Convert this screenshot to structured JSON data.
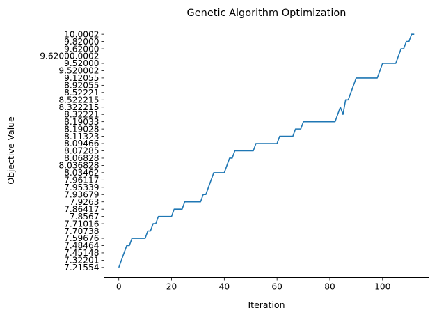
{
  "chart_data": {
    "type": "line",
    "title": "Genetic Algorithm Optimization",
    "xlabel": "Iteration",
    "ylabel": "Objective Value",
    "xlim": [
      -5.6,
      117.6
    ],
    "xticks": [
      0,
      20,
      40,
      60,
      80,
      100
    ],
    "ylim": [
      -1.4,
      33.4
    ],
    "y_scale": "categorical (labels in order of first occurrence)",
    "y_categories": [
      "7.21554",
      "7.32201",
      "7.45148",
      "7.48464",
      "7.59676",
      "7.70738",
      "7.71016",
      "7.8567",
      "7.86417",
      "7.9263",
      "7.93679",
      "7.95339",
      "7.96117",
      "8.03462",
      "8.036828",
      "8.06828",
      "8.07285",
      "8.09466",
      "8.11323",
      "8.19028",
      "8.19033",
      "8.32221",
      "8.322215",
      "8.522215",
      "8.52221",
      "8.92055",
      "9.12055",
      "9.520002",
      "9.52000",
      "9.62000.0002",
      "9.62000",
      "9.82000",
      "10.0002"
    ],
    "grid": false,
    "legend": "none",
    "line_color": "#1f77b4",
    "series": [
      {
        "name": "",
        "points": [
          [
            0,
            0
          ],
          [
            1,
            1
          ],
          [
            2,
            2
          ],
          [
            3,
            3
          ],
          [
            4,
            3
          ],
          [
            5,
            4
          ],
          [
            6,
            4
          ],
          [
            7,
            4
          ],
          [
            8,
            4
          ],
          [
            9,
            4
          ],
          [
            10,
            4
          ],
          [
            11,
            5
          ],
          [
            12,
            5
          ],
          [
            13,
            6
          ],
          [
            14,
            6
          ],
          [
            15,
            7
          ],
          [
            16,
            7
          ],
          [
            17,
            7
          ],
          [
            18,
            7
          ],
          [
            19,
            7
          ],
          [
            20,
            7
          ],
          [
            21,
            8
          ],
          [
            22,
            8
          ],
          [
            23,
            8
          ],
          [
            24,
            8
          ],
          [
            25,
            9
          ],
          [
            26,
            9
          ],
          [
            27,
            9
          ],
          [
            28,
            9
          ],
          [
            29,
            9
          ],
          [
            30,
            9
          ],
          [
            31,
            9
          ],
          [
            32,
            10
          ],
          [
            33,
            10
          ],
          [
            34,
            11
          ],
          [
            35,
            12
          ],
          [
            36,
            13
          ],
          [
            37,
            13
          ],
          [
            38,
            13
          ],
          [
            39,
            13
          ],
          [
            40,
            13
          ],
          [
            41,
            14
          ],
          [
            42,
            15
          ],
          [
            43,
            15
          ],
          [
            44,
            16
          ],
          [
            45,
            16
          ],
          [
            46,
            16
          ],
          [
            47,
            16
          ],
          [
            48,
            16
          ],
          [
            49,
            16
          ],
          [
            50,
            16
          ],
          [
            51,
            16
          ],
          [
            52,
            17
          ],
          [
            53,
            17
          ],
          [
            54,
            17
          ],
          [
            55,
            17
          ],
          [
            56,
            17
          ],
          [
            57,
            17
          ],
          [
            58,
            17
          ],
          [
            59,
            17
          ],
          [
            60,
            17
          ],
          [
            61,
            18
          ],
          [
            62,
            18
          ],
          [
            63,
            18
          ],
          [
            64,
            18
          ],
          [
            65,
            18
          ],
          [
            66,
            18
          ],
          [
            67,
            19
          ],
          [
            68,
            19
          ],
          [
            69,
            19
          ],
          [
            70,
            20
          ],
          [
            71,
            20
          ],
          [
            72,
            20
          ],
          [
            73,
            20
          ],
          [
            74,
            20
          ],
          [
            75,
            20
          ],
          [
            76,
            20
          ],
          [
            77,
            20
          ],
          [
            78,
            20
          ],
          [
            79,
            20
          ],
          [
            80,
            20
          ],
          [
            81,
            20
          ],
          [
            82,
            20
          ],
          [
            83,
            21
          ],
          [
            84,
            22
          ],
          [
            85,
            21
          ],
          [
            86,
            23
          ],
          [
            87,
            23
          ],
          [
            88,
            24
          ],
          [
            89,
            25
          ],
          [
            90,
            26
          ],
          [
            91,
            26
          ],
          [
            92,
            26
          ],
          [
            93,
            26
          ],
          [
            94,
            26
          ],
          [
            95,
            26
          ],
          [
            96,
            26
          ],
          [
            97,
            26
          ],
          [
            98,
            26
          ],
          [
            99,
            27
          ],
          [
            100,
            28
          ],
          [
            101,
            28
          ],
          [
            102,
            28
          ],
          [
            103,
            28
          ],
          [
            104,
            28
          ],
          [
            105,
            28
          ],
          [
            106,
            29
          ],
          [
            107,
            30
          ],
          [
            108,
            30
          ],
          [
            109,
            31
          ],
          [
            110,
            31
          ],
          [
            111,
            32
          ],
          [
            112,
            32
          ]
        ]
      }
    ]
  }
}
